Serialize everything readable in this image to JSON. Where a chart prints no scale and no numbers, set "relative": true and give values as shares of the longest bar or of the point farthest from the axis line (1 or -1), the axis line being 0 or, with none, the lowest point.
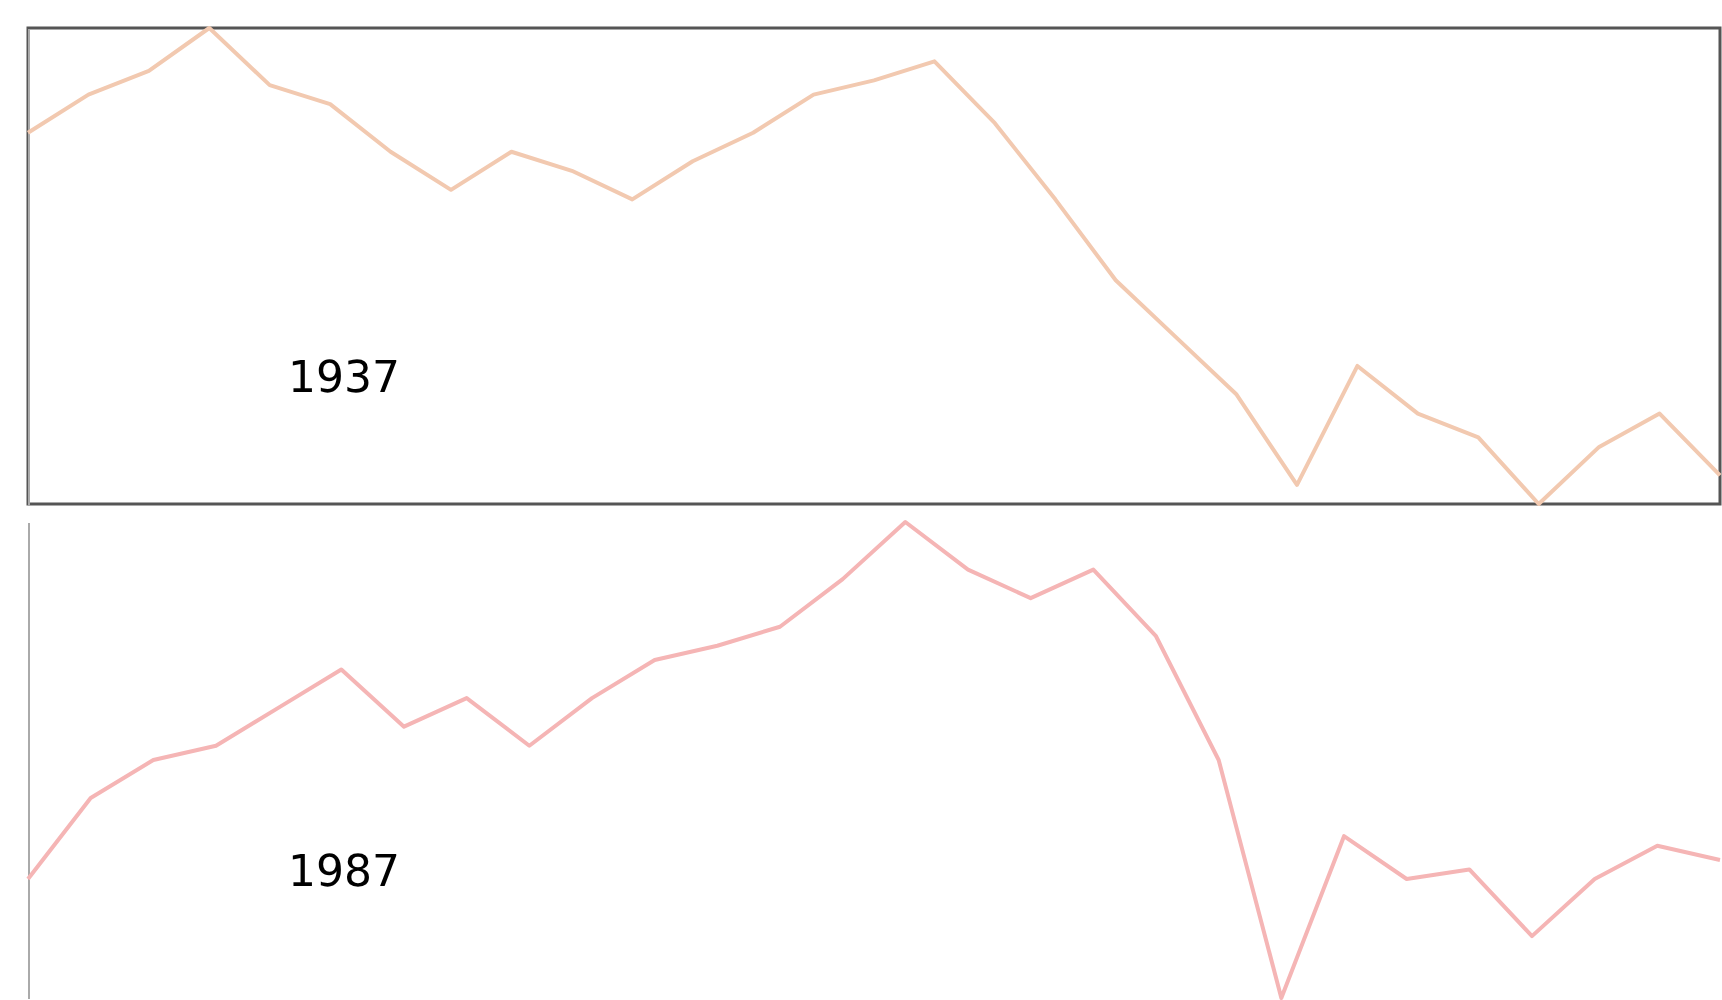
{
  "chart_data": [
    {
      "type": "line",
      "relative": true,
      "categories": [
        null,
        null,
        null,
        null,
        null,
        null,
        null,
        null,
        null,
        null,
        null,
        null,
        null,
        null,
        null,
        null,
        null,
        null,
        null,
        null,
        null,
        null,
        null,
        null,
        null,
        null,
        null,
        null,
        null
      ],
      "annotations": [
        "1937"
      ],
      "series": [
        {
          "color": "#f2c9b0",
          "values": [
            0.78,
            0.86,
            0.91,
            1,
            0.88,
            0.84,
            0.74,
            0.66,
            0.74,
            0.7,
            0.64,
            0.72,
            0.78,
            0.86,
            0.89,
            0.93,
            0.8,
            0.64,
            0.47,
            0.35,
            0.23,
            0.04,
            0.29,
            0.19,
            0.14,
            0,
            0.12,
            0.19,
            0.06
          ]
        }
      ]
    },
    {
      "type": "line",
      "relative": true,
      "categories": [
        null,
        null,
        null,
        null,
        null,
        null,
        null,
        null,
        null,
        null,
        null,
        null,
        null,
        null,
        null,
        null,
        null,
        null,
        null,
        null,
        null,
        null,
        null,
        null,
        null,
        null,
        null,
        null
      ],
      "annotations": [
        "1987"
      ],
      "series": [
        {
          "color": "#f5b5b5",
          "values": [
            0.25,
            0.42,
            0.5,
            0.53,
            0.61,
            0.69,
            0.57,
            0.63,
            0.53,
            0.63,
            0.71,
            0.74,
            0.78,
            0.88,
            1,
            0.9,
            0.84,
            0.9,
            0.76,
            0.5,
            0,
            0.34,
            0.25,
            0.27,
            0.13,
            0.25,
            0.32,
            0.29
          ]
        }
      ]
    }
  ]
}
